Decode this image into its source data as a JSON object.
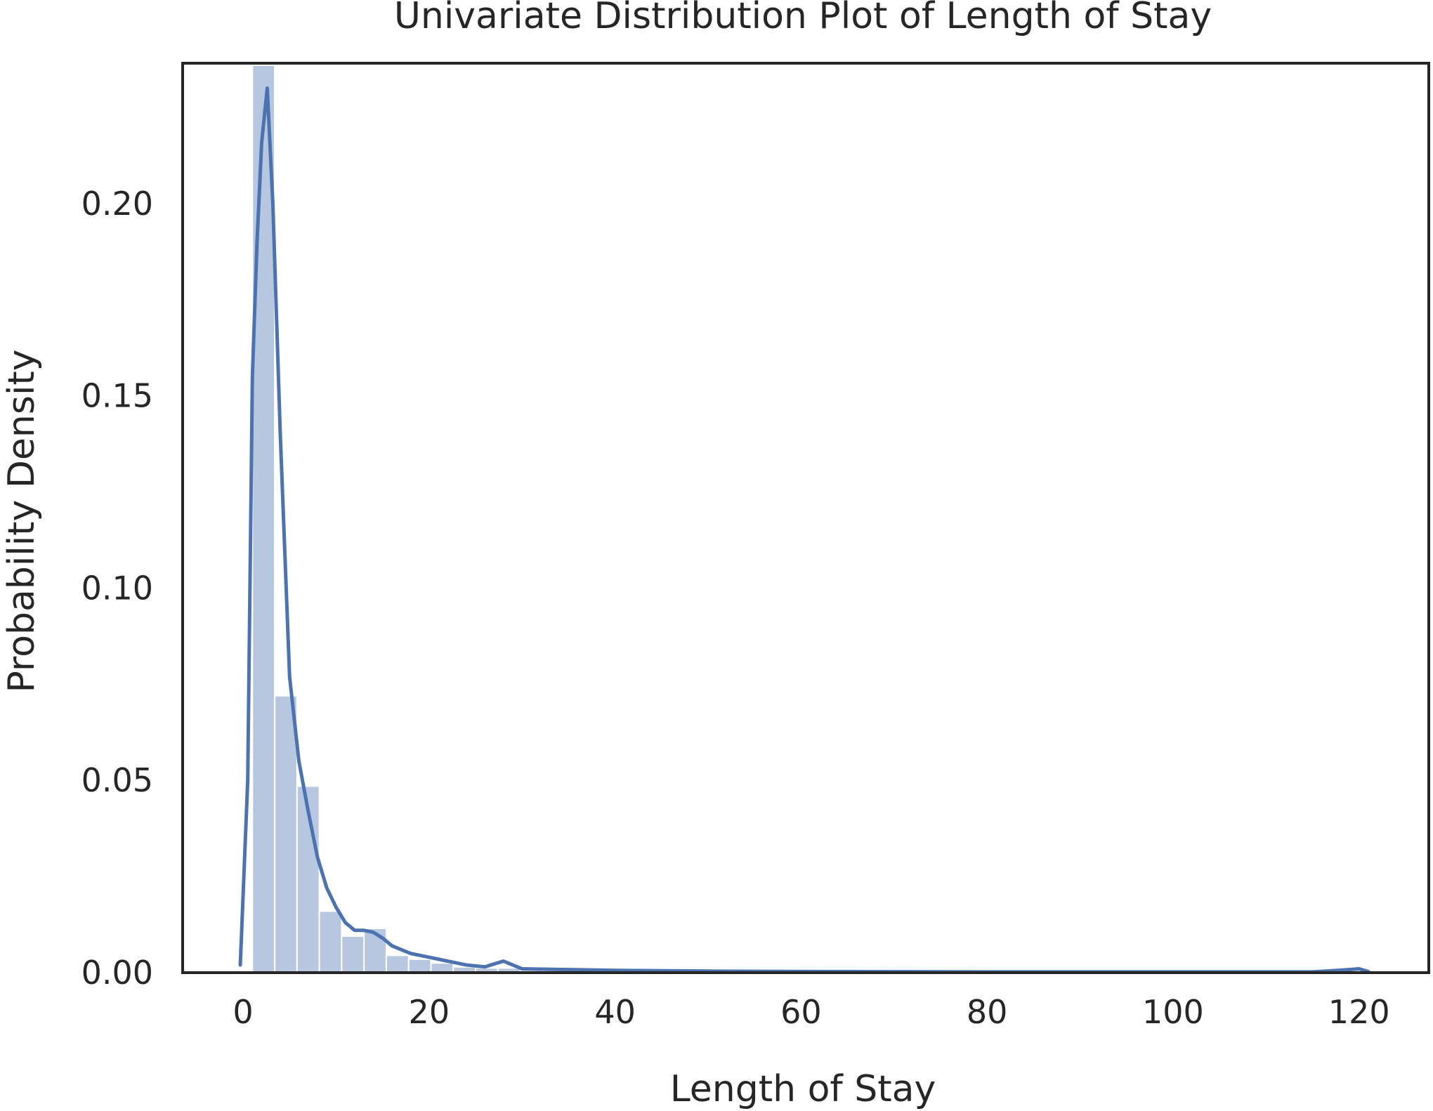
{
  "chart_data": {
    "type": "bar",
    "title": "Univariate Distribution Plot of Length of Stay",
    "xlabel": "Length of Stay",
    "ylabel": "Probability Density",
    "xlim": [
      -6.5,
      127.5
    ],
    "ylim": [
      0,
      0.2365
    ],
    "xticks": [
      0,
      20,
      40,
      60,
      80,
      100,
      120
    ],
    "xtick_labels": [
      "0",
      "20",
      "40",
      "60",
      "80",
      "100",
      "120"
    ],
    "yticks": [
      0.0,
      0.05,
      0.1,
      0.15,
      0.2
    ],
    "ytick_labels": [
      "0.00",
      "0.05",
      "0.10",
      "0.15",
      "0.20"
    ],
    "grid": false,
    "color": "#4c72b0",
    "histogram": {
      "bin_width": 2.4,
      "bin_edges": [
        1.0,
        3.4,
        5.8,
        8.2,
        10.6,
        13.0,
        15.4,
        17.8,
        20.2,
        22.6,
        25.0,
        27.4,
        29.8,
        32.2
      ],
      "values": [
        0.236,
        0.072,
        0.0485,
        0.016,
        0.0095,
        0.0115,
        0.0045,
        0.0035,
        0.0025,
        0.0015,
        0.0012,
        0.0012,
        0.0006
      ]
    },
    "kde": {
      "x": [
        -0.3,
        0.5,
        1.0,
        1.5,
        2.0,
        2.6,
        3.2,
        4.0,
        5.0,
        6.0,
        7.0,
        8.0,
        9.0,
        10.0,
        11.0,
        12.0,
        13.0,
        14.0,
        15.0,
        16.0,
        17.0,
        18.0,
        20.0,
        22.0,
        24.0,
        26.0,
        28.0,
        30.0,
        35.0,
        40.0,
        50.0,
        60.0,
        80.0,
        100.0,
        115.0,
        119.0,
        120.0,
        121.0
      ],
      "y": [
        0.002,
        0.05,
        0.155,
        0.19,
        0.216,
        0.23,
        0.2,
        0.14,
        0.077,
        0.055,
        0.042,
        0.03,
        0.022,
        0.017,
        0.013,
        0.011,
        0.011,
        0.0105,
        0.009,
        0.007,
        0.006,
        0.005,
        0.004,
        0.003,
        0.002,
        0.0015,
        0.003,
        0.001,
        0.0008,
        0.0006,
        0.0004,
        0.0003,
        0.0002,
        0.0002,
        0.0002,
        0.0008,
        0.001,
        0.0003
      ]
    }
  }
}
